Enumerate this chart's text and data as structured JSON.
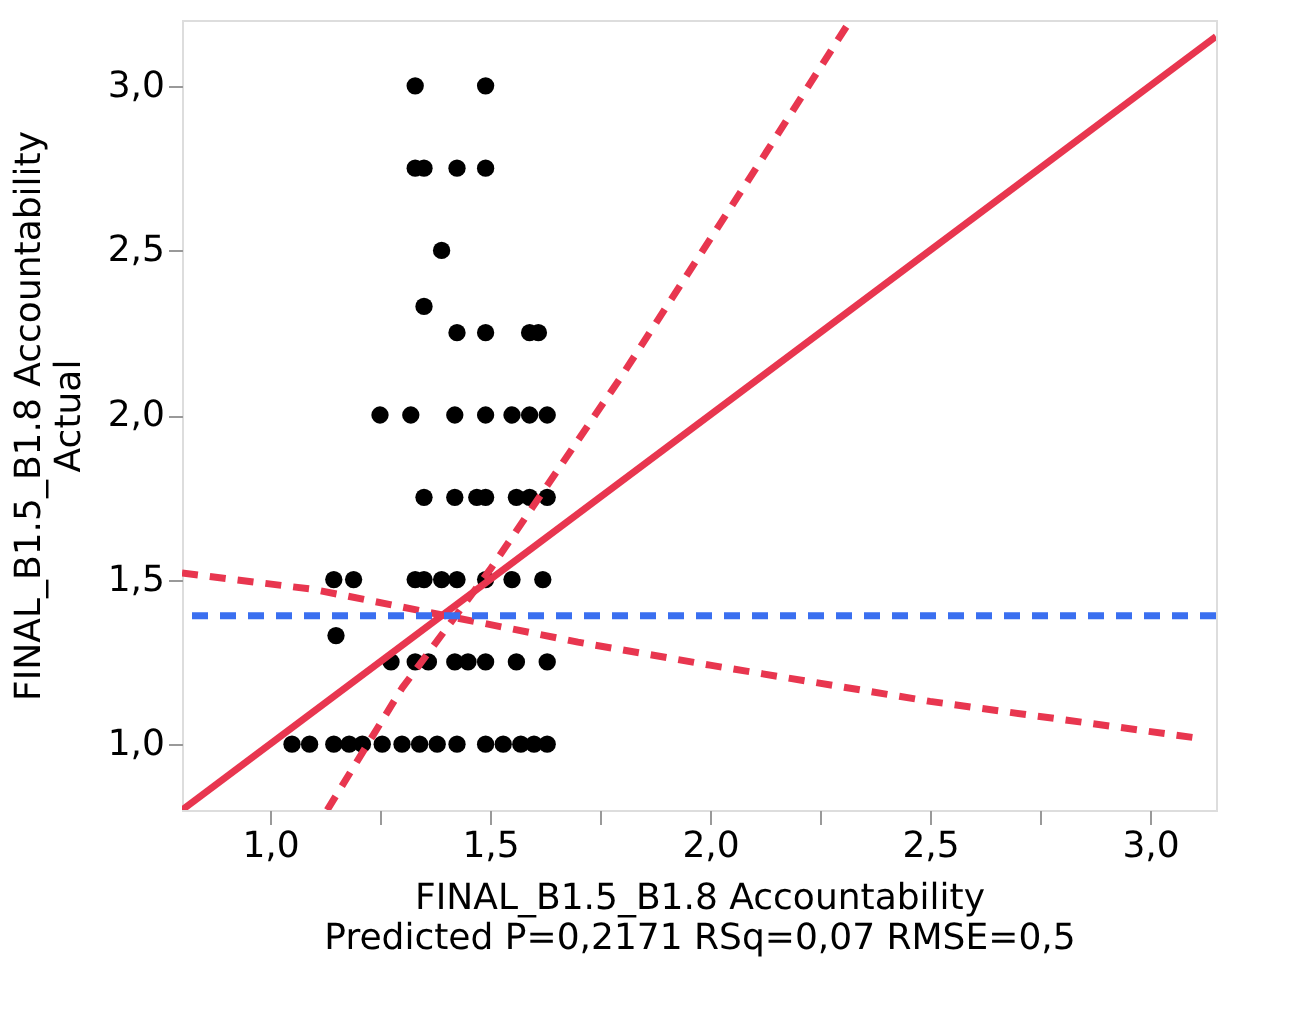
{
  "chart_data": {
    "type": "scatter",
    "xlabel": "FINAL_B1.5_B1.8 Accountability\nPredicted P=0,2171 RSq=0,07 RMSE=0,5",
    "ylabel": "FINAL_B1.5_B1.8 Accountability\nActual",
    "xlim": [
      0.8,
      3.15
    ],
    "ylim": [
      0.8,
      3.2
    ],
    "xticks": [
      {
        "value": 1.0,
        "label": "1,0"
      },
      {
        "value": 1.25,
        "label": null
      },
      {
        "value": 1.5,
        "label": "1,5"
      },
      {
        "value": 1.75,
        "label": null
      },
      {
        "value": 2.0,
        "label": "2,0"
      },
      {
        "value": 2.25,
        "label": null
      },
      {
        "value": 2.5,
        "label": "2,5"
      },
      {
        "value": 2.75,
        "label": null
      },
      {
        "value": 3.0,
        "label": "3,0"
      }
    ],
    "yticks": [
      {
        "value": 1.0,
        "label": "1,0"
      },
      {
        "value": 1.5,
        "label": "1,5"
      },
      {
        "value": 2.0,
        "label": "2,0"
      },
      {
        "value": 2.5,
        "label": "2,5"
      },
      {
        "value": 3.0,
        "label": "3,0"
      }
    ],
    "grid": false,
    "series": [
      {
        "color": "#000000",
        "marker": "circle",
        "x": [
          1.33,
          1.49,
          1.33,
          1.35,
          1.425,
          1.49,
          1.39,
          1.35,
          1.425,
          1.49,
          1.59,
          1.61,
          1.25,
          1.32,
          1.42,
          1.49,
          1.55,
          1.59,
          1.63,
          1.35,
          1.42,
          1.47,
          1.49,
          1.56,
          1.59,
          1.63,
          1.145,
          1.19,
          1.33,
          1.35,
          1.39,
          1.425,
          1.49,
          1.55,
          1.62,
          1.15,
          1.275,
          1.33,
          1.36,
          1.42,
          1.45,
          1.49,
          1.56,
          1.63,
          1.05,
          1.09,
          1.145,
          1.18,
          1.21,
          1.255,
          1.3,
          1.34,
          1.38,
          1.425,
          1.49,
          1.53,
          1.57,
          1.6,
          1.63
        ],
        "values": [
          3.0,
          3.0,
          2.75,
          2.75,
          2.75,
          2.75,
          2.5,
          2.33,
          2.25,
          2.25,
          2.25,
          2.25,
          2.0,
          2.0,
          2.0,
          2.0,
          2.0,
          2.0,
          2.0,
          1.75,
          1.75,
          1.75,
          1.75,
          1.75,
          1.75,
          1.75,
          1.5,
          1.5,
          1.5,
          1.5,
          1.5,
          1.5,
          1.5,
          1.5,
          1.5,
          1.33,
          1.25,
          1.25,
          1.25,
          1.25,
          1.25,
          1.25,
          1.25,
          1.25,
          1.0,
          1.0,
          1.0,
          1.0,
          1.0,
          1.0,
          1.0,
          1.0,
          1.0,
          1.0,
          1.0,
          1.0,
          1.0,
          1.0,
          1.0
        ]
      },
      {
        "type": "line",
        "color": "#e8364f",
        "line_style": "solid",
        "marker": "none",
        "x": [
          0.8,
          3.15
        ],
        "values": [
          0.8,
          3.15
        ]
      },
      {
        "type": "line",
        "color": "#e8364f",
        "line_style": "dashed",
        "marker": "none",
        "x": [
          1.13,
          1.3,
          1.5,
          1.8,
          2.1,
          2.31
        ],
        "values": [
          0.8,
          1.17,
          1.53,
          2.12,
          2.74,
          3.18
        ]
      },
      {
        "type": "line",
        "color": "#e8364f",
        "line_style": "dashed",
        "marker": "none",
        "x": [
          0.8,
          1.1,
          1.4,
          1.7,
          2.0,
          2.5,
          3.1
        ],
        "values": [
          1.52,
          1.47,
          1.39,
          1.31,
          1.24,
          1.13,
          1.02
        ]
      }
    ],
    "ref_lines": [
      {
        "axis": "y",
        "value": 1.39,
        "color": "#3a6ff0",
        "line_style": "dashed"
      }
    ]
  }
}
